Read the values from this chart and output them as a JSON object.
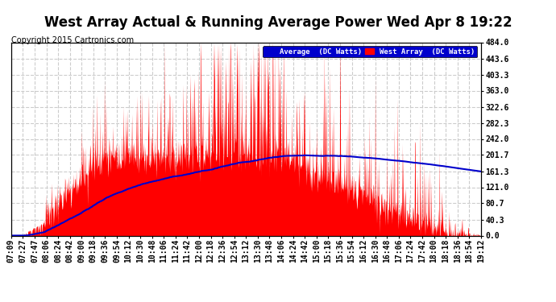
{
  "title": "West Array Actual & Running Average Power Wed Apr 8 19:22",
  "copyright": "Copyright 2015 Cartronics.com",
  "legend_avg": "Average  (DC Watts)",
  "legend_west": "West Array  (DC Watts)",
  "ylabel_right_ticks": [
    0.0,
    40.3,
    80.7,
    121.0,
    161.3,
    201.7,
    242.0,
    282.3,
    322.6,
    363.0,
    403.3,
    443.6,
    484.0
  ],
  "ymax": 484.0,
  "ymin": 0.0,
  "xlabel_times": [
    "07:09",
    "07:27",
    "07:47",
    "08:06",
    "08:24",
    "08:42",
    "09:00",
    "09:18",
    "09:36",
    "09:54",
    "10:12",
    "10:30",
    "10:48",
    "11:06",
    "11:24",
    "11:42",
    "12:00",
    "12:18",
    "12:36",
    "12:54",
    "13:12",
    "13:30",
    "13:48",
    "14:06",
    "14:24",
    "14:42",
    "15:00",
    "15:18",
    "15:36",
    "15:54",
    "16:12",
    "16:30",
    "16:48",
    "17:06",
    "17:24",
    "17:42",
    "18:00",
    "18:18",
    "18:36",
    "18:54",
    "19:12"
  ],
  "bg_color": "#ffffff",
  "plot_bg_color": "#ffffff",
  "grid_color": "#cccccc",
  "fill_color": "#ff0000",
  "avg_line_color": "#0000cc",
  "title_color": "#000000",
  "title_fontsize": 12,
  "copyright_fontsize": 7,
  "tick_fontsize": 7
}
